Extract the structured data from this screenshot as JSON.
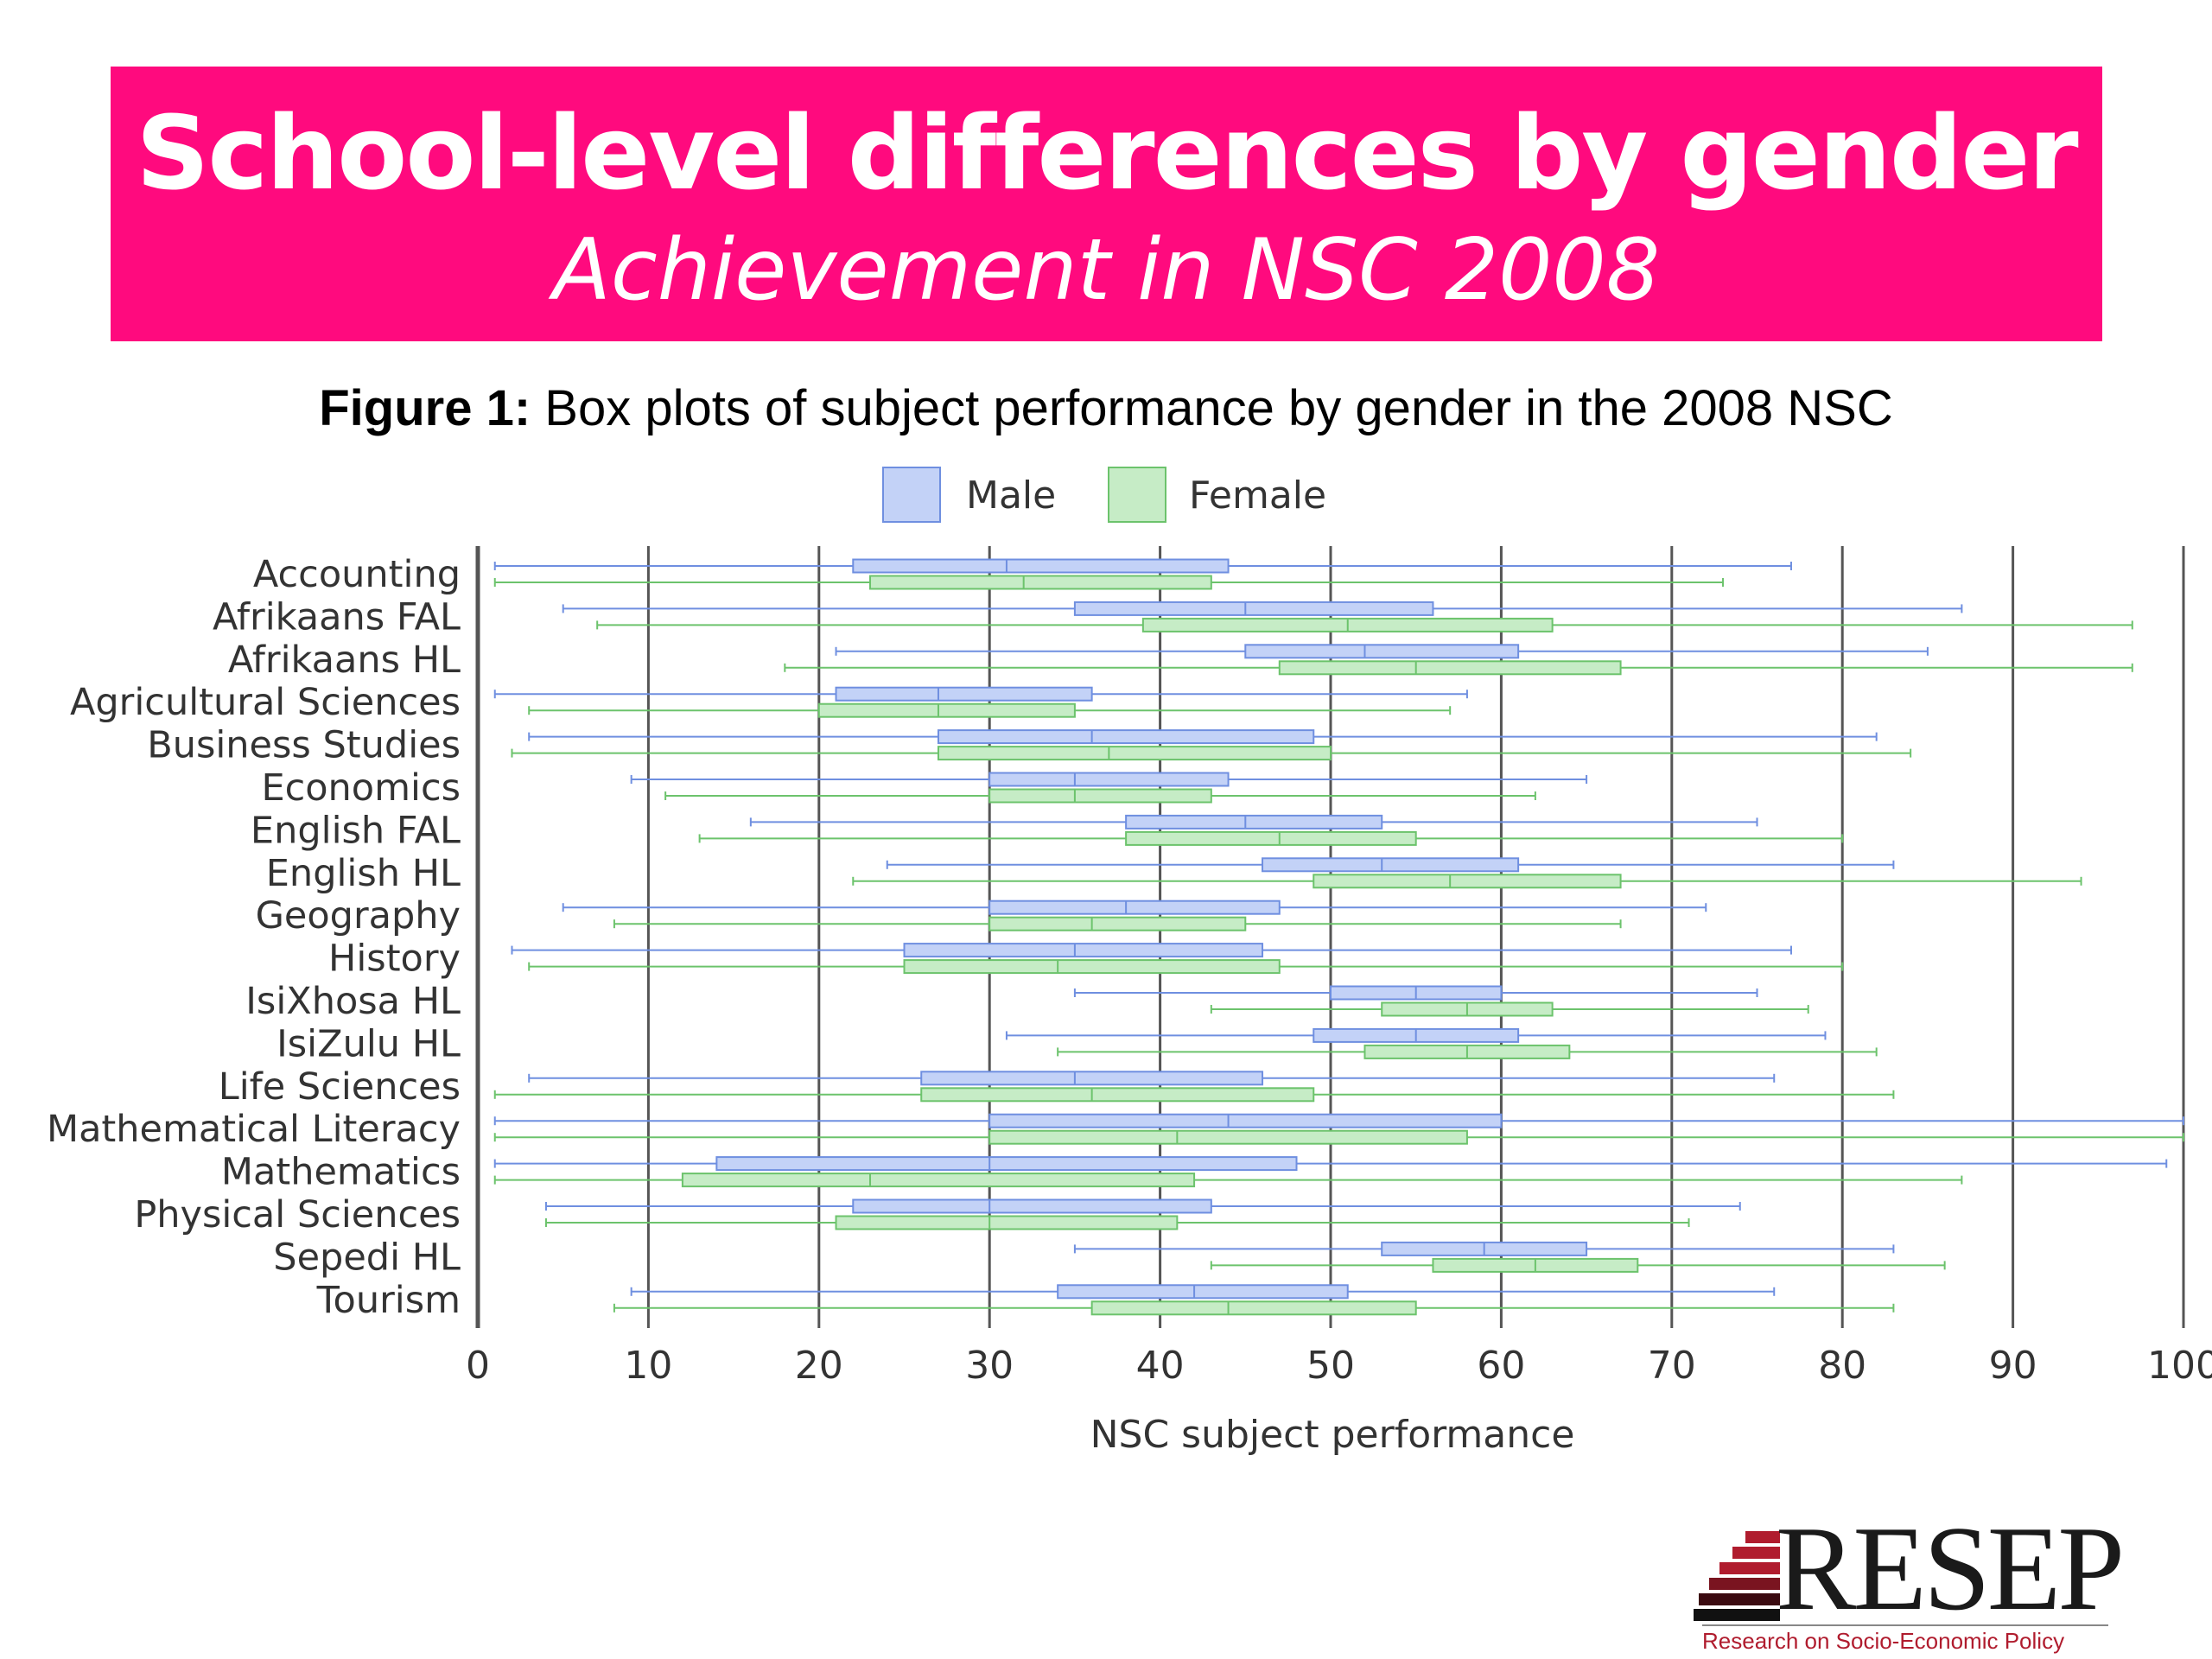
{
  "banner": {
    "title": "School-level differences by gender",
    "subtitle": "Achievement in NSC 2008"
  },
  "figure": {
    "label": "Figure 1:",
    "caption": " Box plots of subject performance by gender in the 2008 NSC"
  },
  "logo": {
    "wordmark": "RESEP",
    "tagline": "Research on Socio-Economic Policy"
  },
  "colors": {
    "banner": "#ff0a7e",
    "male_fill": "#c3d2f7",
    "male_stroke": "#6f8fe0",
    "female_fill": "#c6ecc6",
    "female_stroke": "#6cc36c",
    "grid": "#555555",
    "logo_red": "#b01c2e"
  },
  "chart_data": {
    "type": "boxplot",
    "orientation": "horizontal",
    "xlabel": "NSC subject performance",
    "xlim": [
      0,
      100
    ],
    "xticks": [
      0,
      10,
      20,
      30,
      40,
      50,
      60,
      70,
      80,
      90,
      100
    ],
    "grid": true,
    "legend": {
      "position": "top",
      "entries": [
        "Male",
        "Female"
      ]
    },
    "categories": [
      "Accounting",
      "Afrikaans FAL",
      "Afrikaans HL",
      "Agricultural Sciences",
      "Business Studies",
      "Economics",
      "English FAL",
      "English HL",
      "Geography",
      "History",
      "IsiXhosa HL",
      "IsiZulu HL",
      "Life Sciences",
      "Mathematical Literacy",
      "Mathematics",
      "Physical Sciences",
      "Sepedi HL",
      "Tourism"
    ],
    "series": [
      {
        "name": "Male",
        "boxes": [
          [
            1,
            22,
            31,
            44,
            77
          ],
          [
            5,
            35,
            45,
            56,
            87
          ],
          [
            21,
            45,
            52,
            61,
            85
          ],
          [
            1,
            21,
            27,
            36,
            58
          ],
          [
            3,
            27,
            36,
            49,
            82
          ],
          [
            9,
            30,
            35,
            44,
            65
          ],
          [
            16,
            38,
            45,
            53,
            75
          ],
          [
            24,
            46,
            53,
            61,
            83
          ],
          [
            5,
            30,
            38,
            47,
            72
          ],
          [
            2,
            25,
            35,
            46,
            77
          ],
          [
            35,
            50,
            55,
            60,
            75
          ],
          [
            31,
            49,
            55,
            61,
            79
          ],
          [
            3,
            26,
            35,
            46,
            76
          ],
          [
            1,
            30,
            44,
            60,
            100
          ],
          [
            1,
            14,
            30,
            48,
            99
          ],
          [
            4,
            22,
            30,
            43,
            74
          ],
          [
            35,
            53,
            59,
            65,
            83
          ],
          [
            9,
            34,
            42,
            51,
            76
          ]
        ]
      },
      {
        "name": "Female",
        "boxes": [
          [
            1,
            23,
            32,
            43,
            73
          ],
          [
            7,
            39,
            51,
            63,
            97
          ],
          [
            18,
            47,
            55,
            67,
            97
          ],
          [
            3,
            20,
            27,
            35,
            57
          ],
          [
            2,
            27,
            37,
            50,
            84
          ],
          [
            11,
            30,
            35,
            43,
            62
          ],
          [
            13,
            38,
            47,
            55,
            80
          ],
          [
            22,
            49,
            57,
            67,
            94
          ],
          [
            8,
            30,
            36,
            45,
            67
          ],
          [
            3,
            25,
            34,
            47,
            80
          ],
          [
            43,
            53,
            58,
            63,
            78
          ],
          [
            34,
            52,
            58,
            64,
            82
          ],
          [
            1,
            26,
            36,
            49,
            83
          ],
          [
            1,
            30,
            41,
            58,
            100
          ],
          [
            1,
            12,
            23,
            42,
            87
          ],
          [
            4,
            21,
            30,
            41,
            71
          ],
          [
            43,
            56,
            62,
            68,
            86
          ],
          [
            8,
            36,
            44,
            55,
            83
          ]
        ]
      }
    ]
  }
}
